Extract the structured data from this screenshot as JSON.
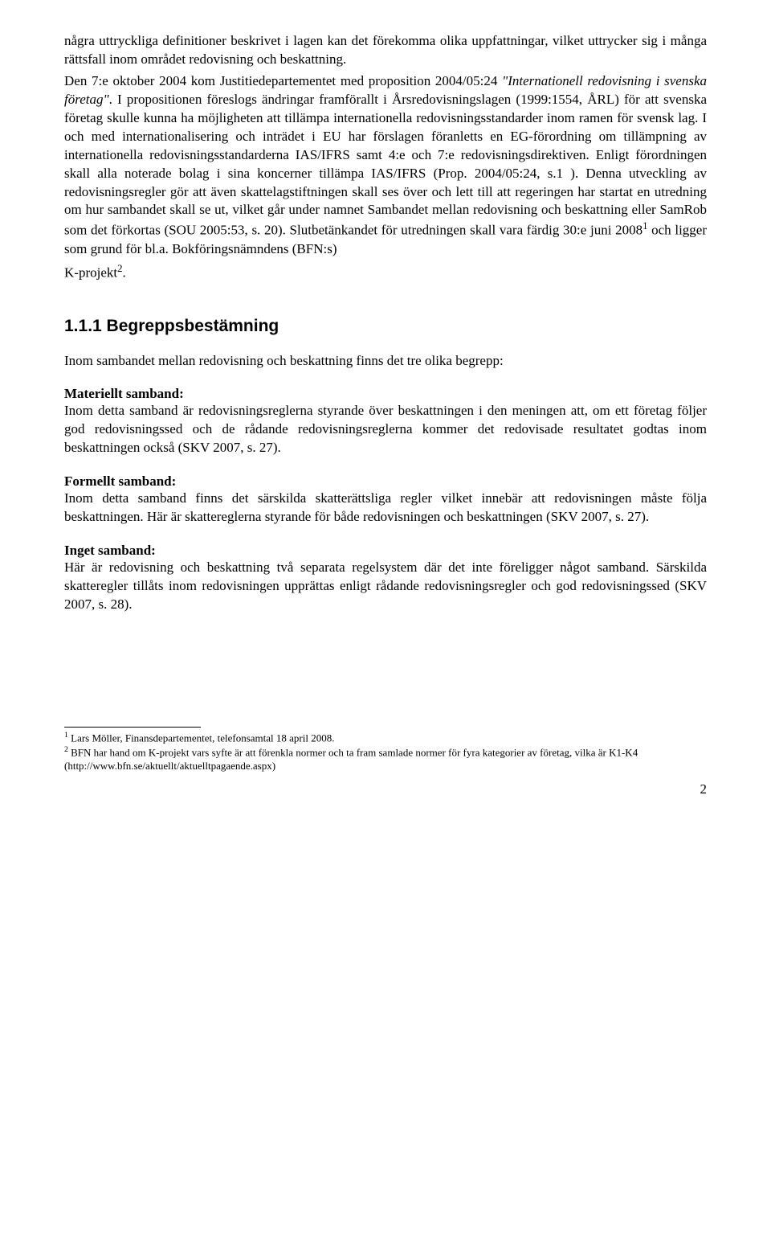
{
  "body": {
    "para1_part1": "några uttryckliga definitioner beskrivet i lagen kan det förekomma olika uppfattningar, vilket uttrycker sig i många rättsfall inom området redovisning och beskattning.",
    "para2_start": "Den 7:e oktober 2004 kom Justitiedepartementet med proposition 2004/05:24 ",
    "para2_italic": "\"Internationell redovisning i svenska företag\"",
    "para2_after_italic": ". I propositionen föreslogs ändringar framförallt i Årsredovisningslagen (1999:1554, ÅRL) för att svenska företag skulle kunna ha möjligheten att tillämpa internationella redovisningsstandarder inom ramen för svensk lag. I och med internationalisering och inträdet i EU har förslagen föranletts en EG-förordning om tillämpning av internationella redovisningsstandarderna IAS/IFRS samt 4:e och 7:e redovisningsdirektiven. Enligt förordningen skall alla noterade bolag i sina koncerner tillämpa IAS/IFRS (Prop. 2004/05:24, s.1 ). Denna utveckling av redovisningsregler gör att även skattelagstiftningen skall ses över och lett till att regeringen har startat en utredning om hur sambandet skall se ut, vilket går under namnet Sambandet mellan redovisning och beskattning eller SamRob som det förkortas (SOU 2005:53, s. 20). Slutbetänkandet för utredningen skall vara färdig 30:e juni 2008",
    "para2_sup1": "1",
    "para2_after_sup1": " och ligger som grund för bl.a. Bokföringsnämndens (BFN:s)",
    "para2_line2": "K-projekt",
    "para2_sup2": "2",
    "para2_line2_end": "."
  },
  "section": {
    "heading": "1.1.1 Begreppsbestämning",
    "intro": "Inom sambandet mellan redovisning och beskattning finns det tre olika begrepp:",
    "materiellt_title": "Materiellt samband:",
    "materiellt_text": "Inom detta samband är redovisningsreglerna styrande över beskattningen i den meningen att, om ett företag följer god redovisningssed och de rådande redovisningsreglerna kommer det redovisade resultatet godtas inom beskattningen också (SKV 2007, s. 27).",
    "formellt_title": "Formellt samband:",
    "formellt_text": "Inom detta samband finns det särskilda skatterättsliga regler vilket innebär att redovisningen måste följa beskattningen. Här är skattereglerna styrande för både redovisningen och beskattningen (SKV 2007, s. 27).",
    "inget_title": "Inget samband:",
    "inget_text": "Här är redovisning och beskattning två separata regelsystem där det inte föreligger något samband. Särskilda skatteregler tillåts inom redovisningen upprättas enligt rådande redovisningsregler och god redovisningssed (SKV 2007, s. 28)."
  },
  "footnotes": {
    "fn1_sup": "1",
    "fn1_text": " Lars Möller, Finansdepartementet, telefonsamtal 18 april 2008.",
    "fn2_sup": "2",
    "fn2_text": " BFN har hand om K-projekt vars syfte är att förenkla normer och ta fram samlade normer för fyra kategorier av företag, vilka är K1-K4 (http://www.bfn.se/aktuellt/aktuelltpagaende.aspx)"
  },
  "page_number": "2",
  "styles": {
    "body_font_size": 17,
    "heading_font_size": 21,
    "footnote_font_size": 13,
    "text_color": "#000000",
    "background_color": "#ffffff"
  }
}
